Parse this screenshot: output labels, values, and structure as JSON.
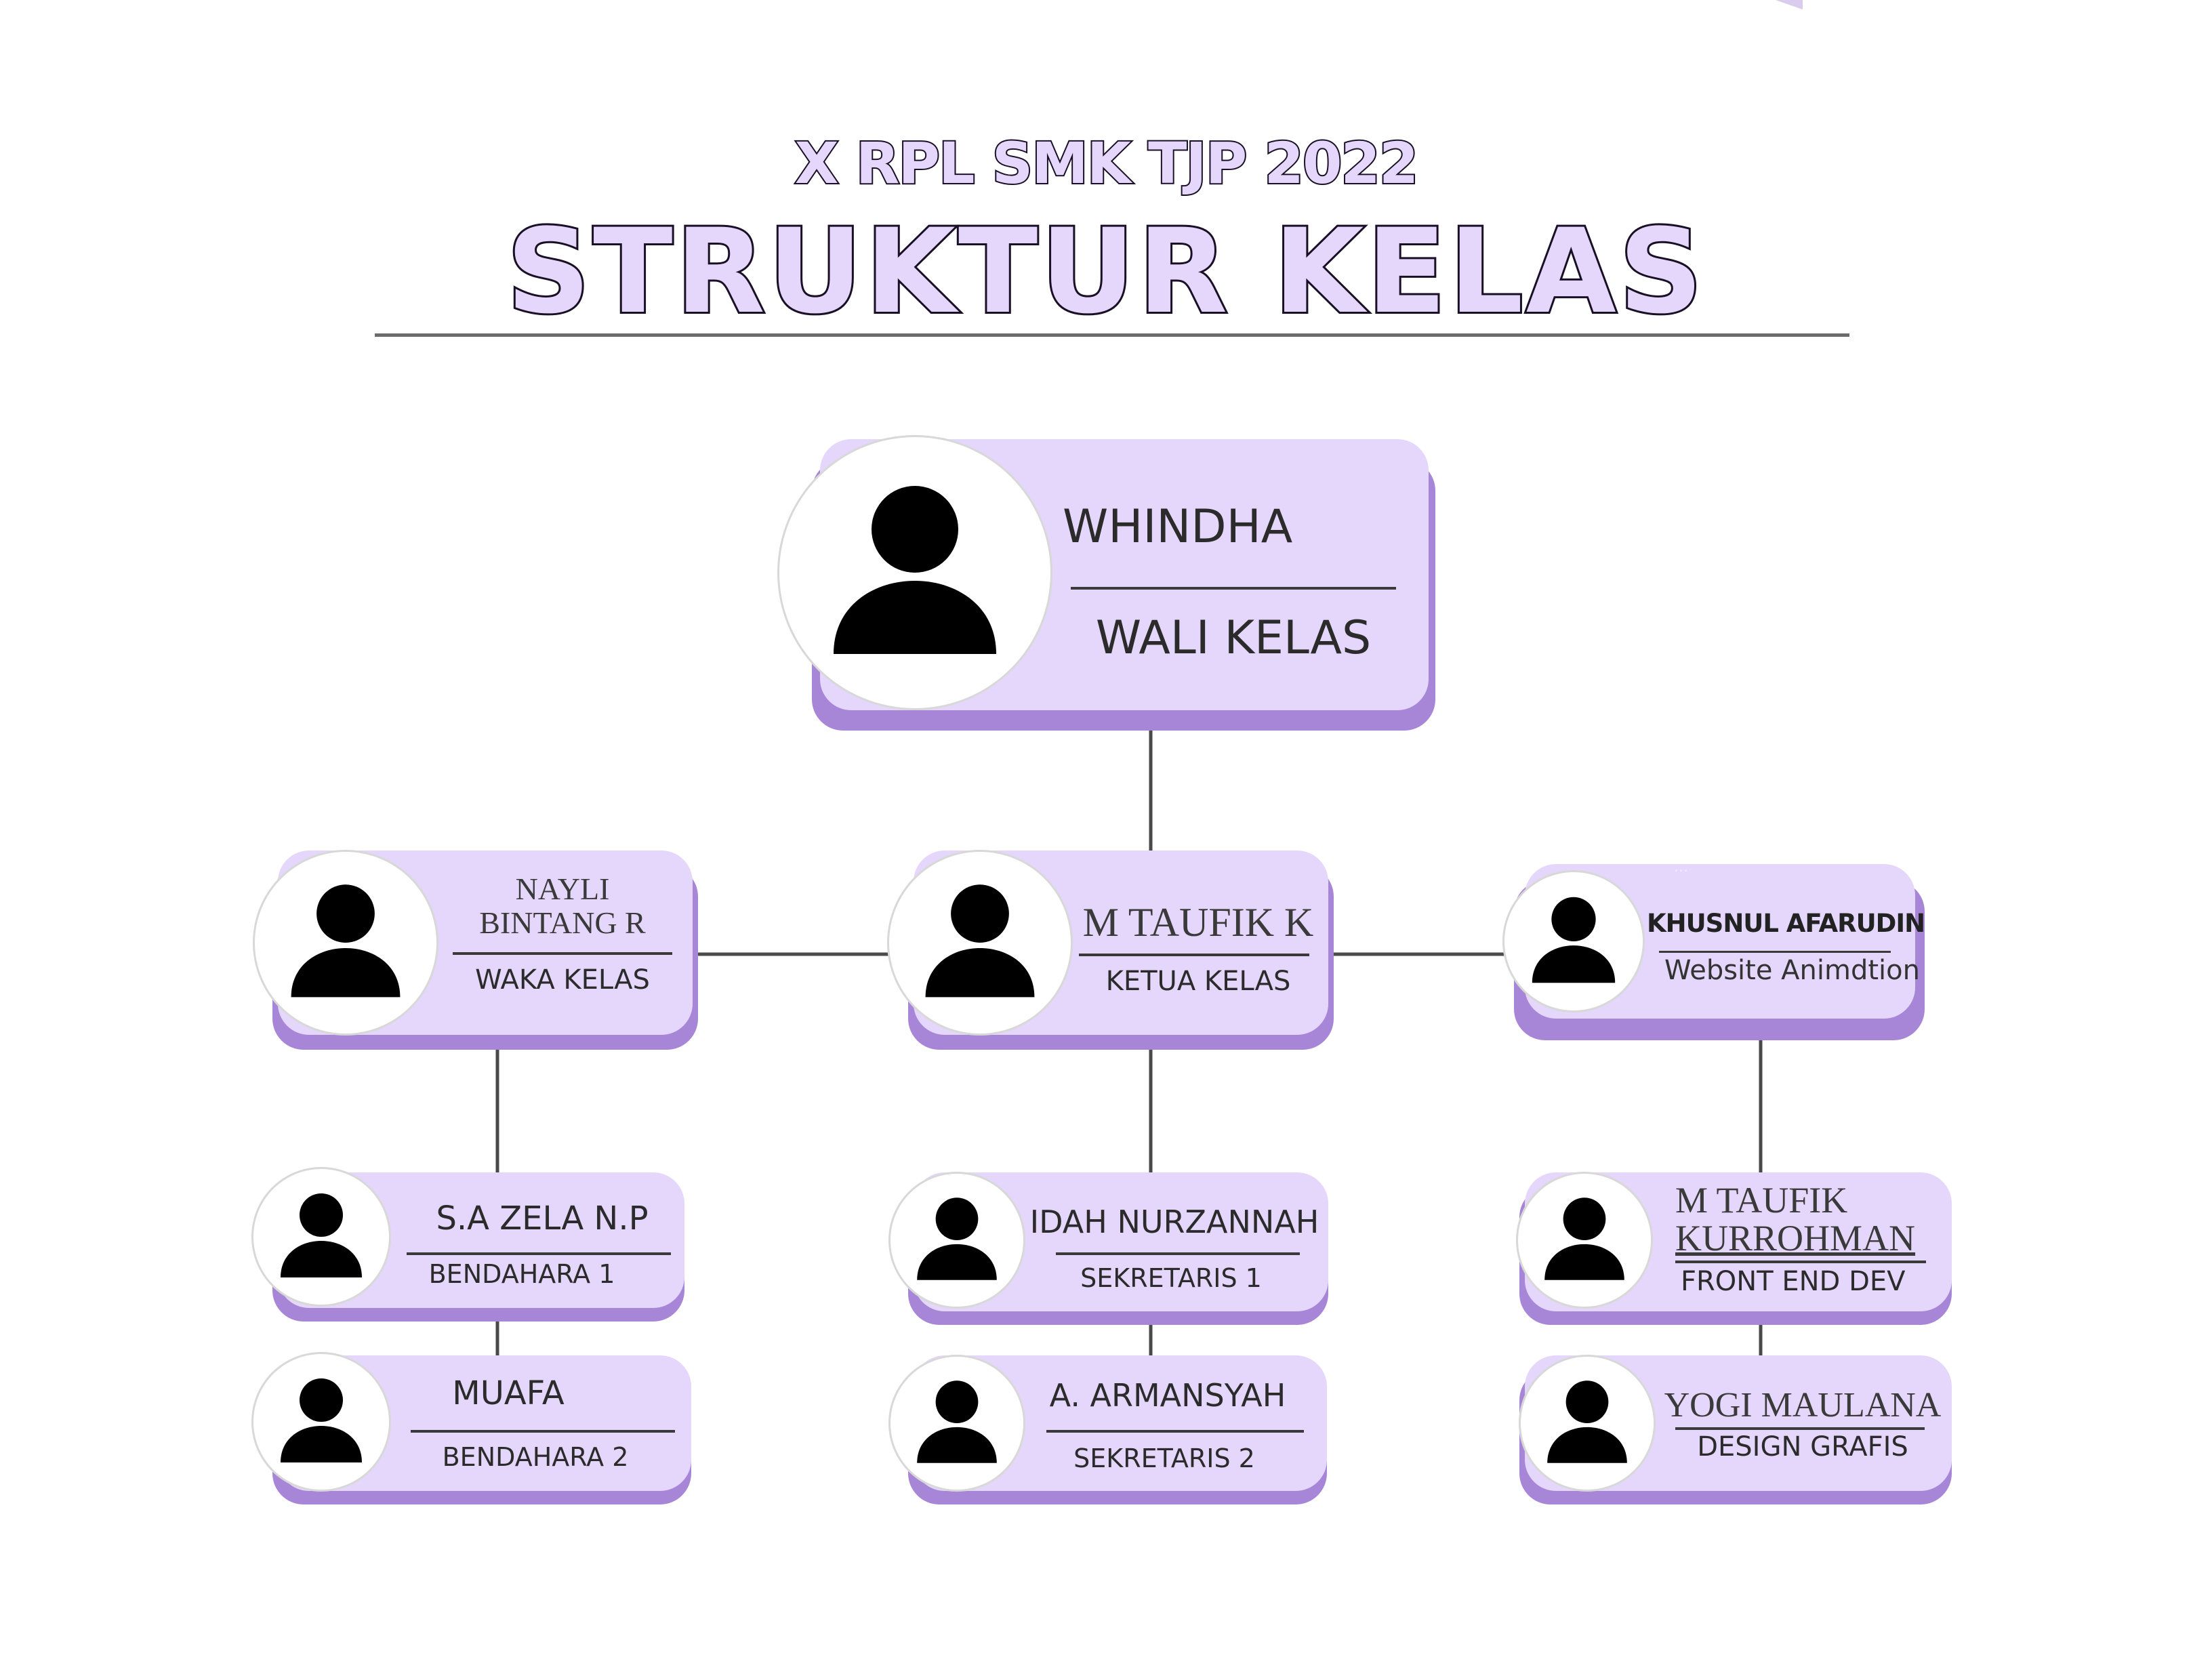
{
  "header": {
    "subtitle": "X RPL SMK TJP 2022",
    "title": "STRUKTUR KELAS"
  },
  "colors": {
    "card_fill": "#e5d6fb",
    "card_shadow": "#a786d8",
    "title_fill": "#e5d6fb",
    "title_outline": "#1a1026",
    "line": "#4a4a4a"
  },
  "nodes": {
    "wali": {
      "name": "WHINDHA",
      "role": "WALI KELAS"
    },
    "waka": {
      "name_line1": "NAYLI",
      "name_line2": "BINTANG R",
      "role": "WAKA KELAS"
    },
    "ketua": {
      "name": "M TAUFIK K",
      "role": "KETUA KELAS"
    },
    "khusnul": {
      "name": "KHUSNUL AFARUDIN",
      "role": "Website Animdtion"
    },
    "bendahara1": {
      "name": "S.A ZELA N.P",
      "role": "BENDAHARA 1"
    },
    "bendahara2": {
      "name": "MUAFA",
      "role": "BENDAHARA 2"
    },
    "sekretaris1": {
      "name": "IDAH NURZANNAH",
      "role": "SEKRETARIS 1"
    },
    "sekretaris2": {
      "name": "A. ARMANSYAH",
      "role": "SEKRETARIS 2"
    },
    "frontend": {
      "name_line1": "M TAUFIK",
      "name_line2": "KURROHMAN",
      "role": "FRONT END DEV"
    },
    "design": {
      "name": "YOGI MAULANA",
      "role": "DESIGN GRAFIS"
    }
  }
}
